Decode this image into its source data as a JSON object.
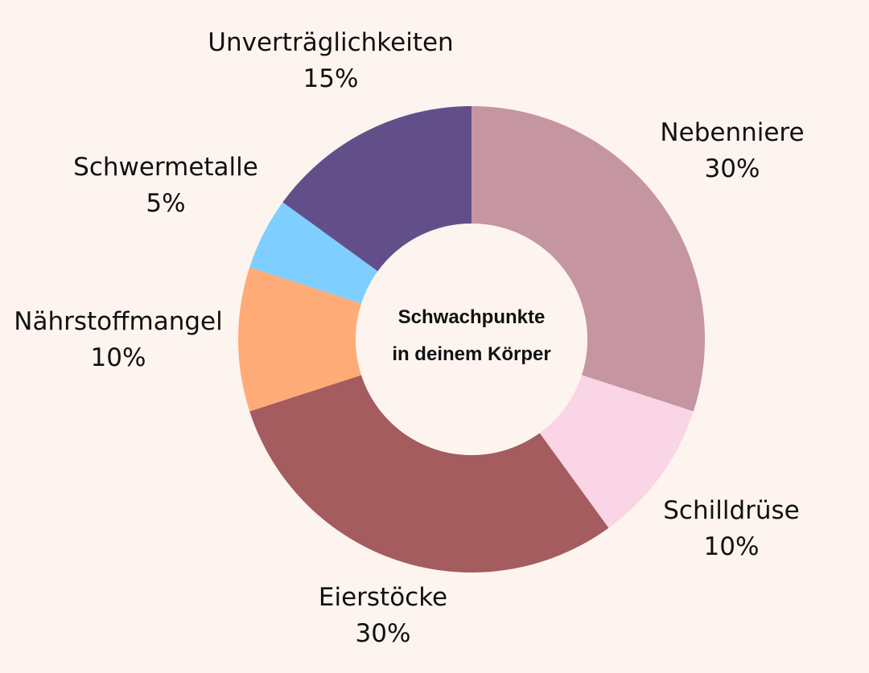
{
  "chart_data": {
    "type": "pie",
    "variant": "donut",
    "center_label": [
      "Schwachpunkte",
      "in deinem Körper"
    ],
    "unit": "%",
    "slices": [
      {
        "label": "Nebenniere",
        "value": 30,
        "value_label": "30%",
        "color": "#c595a1"
      },
      {
        "label": "Schilldrüse",
        "value": 10,
        "value_label": "10%",
        "color": "#f9d5e6"
      },
      {
        "label": "Eierstöcke",
        "value": 30,
        "value_label": "30%",
        "color": "#a55c5e"
      },
      {
        "label": "Nährstoffmangel",
        "value": 10,
        "value_label": "10%",
        "color": "#ffab78"
      },
      {
        "label": "Schwermetalle",
        "value": 5,
        "value_label": "5%",
        "color": "#7ecfff"
      },
      {
        "label": "Unverträglichkeiten",
        "value": 15,
        "value_label": "15%",
        "color": "#624f8a"
      }
    ]
  },
  "background_color": "#fdf4ef"
}
